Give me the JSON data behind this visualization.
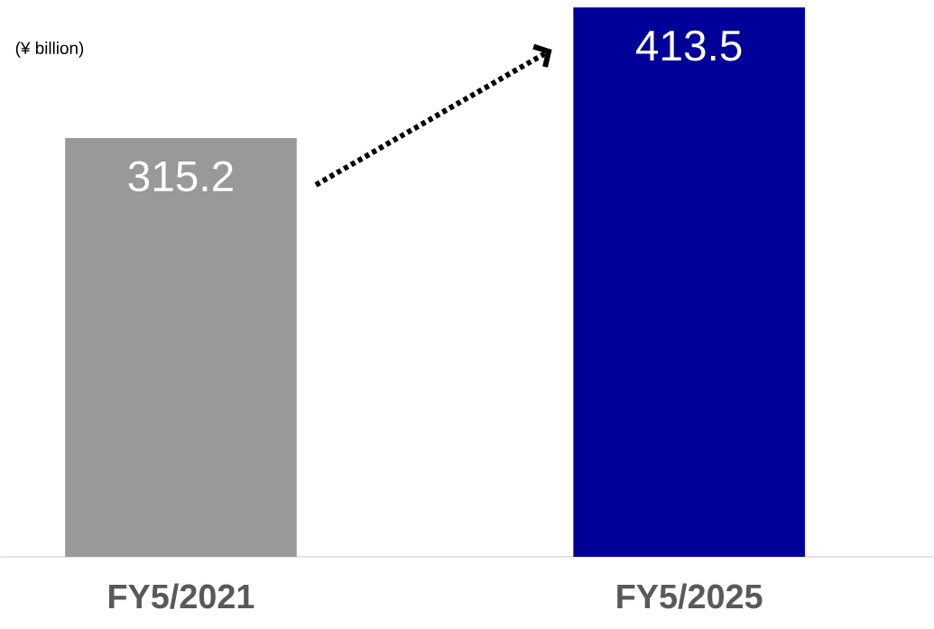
{
  "chart_data": {
    "type": "bar",
    "ylabel": "(¥ billion)",
    "categories": [
      "FY5/2021",
      "FY5/2025"
    ],
    "values": [
      315.2,
      413.5
    ],
    "colors": [
      "#999999",
      "#000099"
    ],
    "data_labels": true
  }
}
